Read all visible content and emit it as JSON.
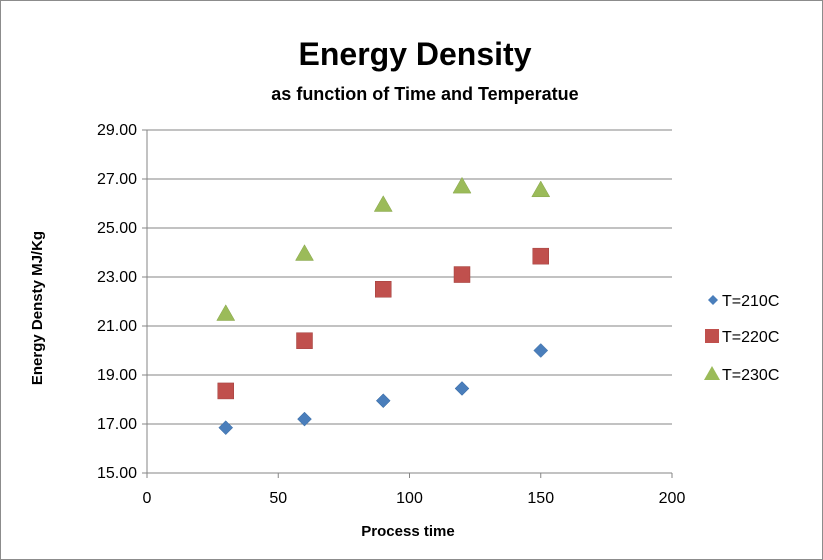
{
  "chart_data": {
    "type": "scatter",
    "title": "Energy Density",
    "subtitle": "as function of Time and Temperatue",
    "xlabel": "Process time",
    "ylabel": "Energy Densty MJ/Kg",
    "xlim": [
      0,
      200
    ],
    "ylim": [
      15,
      29
    ],
    "xticks": [
      "0",
      "50",
      "100",
      "150",
      "200"
    ],
    "yticks": [
      "15.00",
      "17.00",
      "19.00",
      "21.00",
      "23.00",
      "25.00",
      "27.00",
      "29.00"
    ],
    "grid": "horizontal",
    "legend_position": "right",
    "series": [
      {
        "name": "T=210C",
        "marker": "diamond",
        "color": "#4a7ebb",
        "points": [
          [
            30,
            16.85
          ],
          [
            60,
            17.2
          ],
          [
            90,
            17.95
          ],
          [
            120,
            18.45
          ],
          [
            150,
            20.0
          ]
        ]
      },
      {
        "name": "T=220C",
        "marker": "square",
        "color": "#c0504d",
        "points": [
          [
            30,
            18.35
          ],
          [
            60,
            20.4
          ],
          [
            90,
            22.5
          ],
          [
            120,
            23.1
          ],
          [
            150,
            23.85
          ]
        ]
      },
      {
        "name": "T=230C",
        "marker": "triangle",
        "color": "#9bbb59",
        "points": [
          [
            30,
            21.5
          ],
          [
            60,
            23.95
          ],
          [
            90,
            25.95
          ],
          [
            120,
            26.7
          ],
          [
            150,
            26.55
          ]
        ]
      }
    ]
  }
}
